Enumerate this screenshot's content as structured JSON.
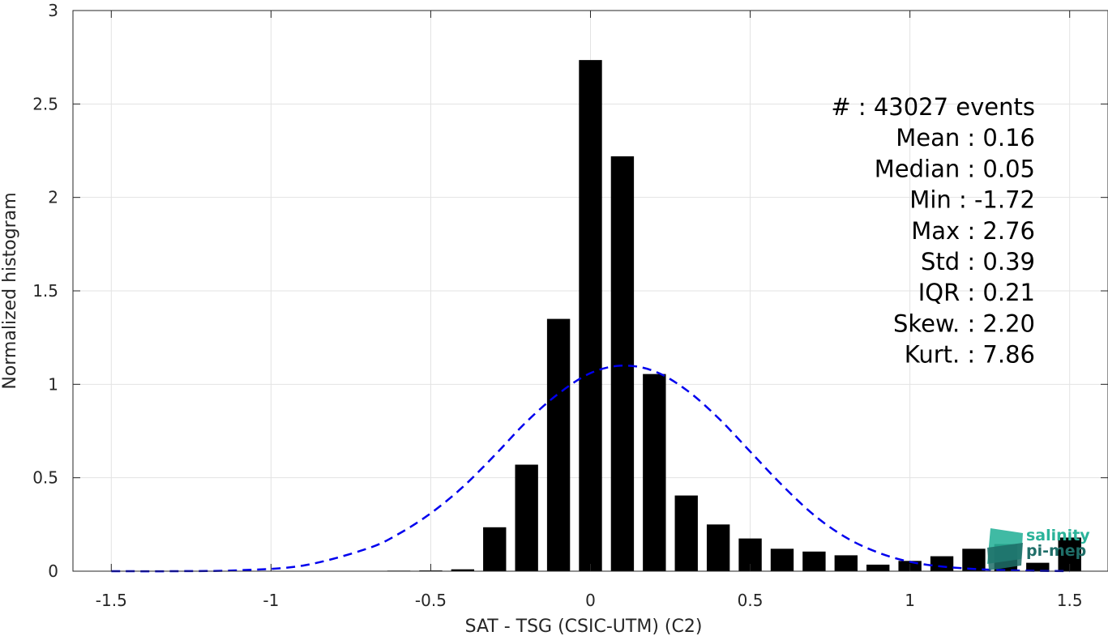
{
  "chart_data": {
    "type": "bar",
    "xlabel": "SAT - TSG (CSIC-UTM) (C2)",
    "ylabel": "Normalized histogram",
    "xlim": [
      -1.62,
      1.62
    ],
    "ylim": [
      0,
      3
    ],
    "xticks": [
      "-1.5",
      "-1",
      "-0.5",
      "0",
      "0.5",
      "1",
      "1.5"
    ],
    "xtick_values": [
      -1.5,
      -1,
      -0.5,
      0,
      0.5,
      1,
      1.5
    ],
    "yticks": [
      "0",
      "0.5",
      "1",
      "1.5",
      "2",
      "2.5",
      "3"
    ],
    "ytick_values": [
      0,
      0.5,
      1,
      1.5,
      2,
      2.5,
      3
    ],
    "grid": true,
    "bin_width": 0.1,
    "bar_color": "#000000",
    "bars": {
      "x": [
        -1.5,
        -1.4,
        -1.3,
        -1.2,
        -1.1,
        -1.0,
        -0.9,
        -0.8,
        -0.7,
        -0.6,
        -0.5,
        -0.4,
        -0.3,
        -0.2,
        -0.1,
        0.0,
        0.1,
        0.2,
        0.3,
        0.4,
        0.5,
        0.6,
        0.7,
        0.8,
        0.9,
        1.0,
        1.1,
        1.2,
        1.3,
        1.4,
        1.5
      ],
      "values": [
        0,
        0,
        0,
        0,
        0,
        0,
        0,
        0,
        0,
        0.003,
        0.004,
        0.01,
        0.235,
        0.57,
        1.35,
        2.735,
        2.22,
        1.055,
        0.405,
        0.25,
        0.175,
        0.12,
        0.105,
        0.085,
        0.035,
        0.055,
        0.08,
        0.12,
        0.145,
        0.045,
        0.18
      ]
    },
    "fit_curve": {
      "style": "dashed",
      "color": "#0000ee",
      "x": [
        -1.5,
        -1.3,
        -1.1,
        -0.9,
        -0.7,
        -0.6,
        -0.5,
        -0.4,
        -0.3,
        -0.2,
        -0.1,
        0.0,
        0.1,
        0.2,
        0.3,
        0.4,
        0.5,
        0.6,
        0.7,
        0.8,
        0.9,
        1.0,
        1.1,
        1.2,
        1.3,
        1.4,
        1.5
      ],
      "values": [
        0.0,
        0.0,
        0.005,
        0.03,
        0.12,
        0.2,
        0.31,
        0.45,
        0.62,
        0.8,
        0.95,
        1.06,
        1.1,
        1.07,
        0.97,
        0.82,
        0.64,
        0.46,
        0.3,
        0.18,
        0.1,
        0.05,
        0.025,
        0.012,
        0.005,
        0.002,
        0.0
      ]
    },
    "annotations": [
      "#  : 43027 events",
      "Mean : 0.16",
      "Median : 0.05",
      "Min : -1.72",
      "Max : 2.76",
      "Std : 0.39",
      "IQR : 0.21",
      "Skew. : 2.20",
      "Kurt. : 7.86"
    ]
  },
  "logo": {
    "line1": "salinity",
    "line2": "pi-mep",
    "color1": "#2bb39a",
    "color2": "#1f6e68"
  }
}
